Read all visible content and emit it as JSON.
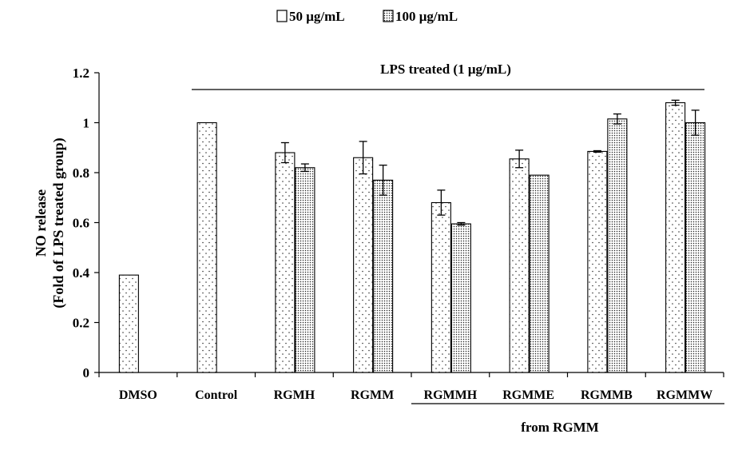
{
  "chart_data": {
    "type": "bar",
    "categories": [
      "DMSO",
      "Control",
      "RGMH",
      "RGMM",
      "RGMMH",
      "RGMME",
      "RGMMB",
      "RGMMW"
    ],
    "series": [
      {
        "name": "50 μg/mL",
        "pattern": "sparse-dots",
        "values": [
          0.39,
          1.0,
          0.88,
          0.86,
          0.68,
          0.855,
          0.885,
          1.08
        ],
        "errors": [
          0,
          0,
          0.04,
          0.065,
          0.05,
          0.035,
          0.003,
          0.01
        ]
      },
      {
        "name": "100 μg/mL",
        "pattern": "dense-dots",
        "values": [
          null,
          null,
          0.82,
          0.77,
          0.595,
          0.79,
          1.015,
          1.0
        ],
        "errors": [
          0,
          0,
          0.015,
          0.06,
          0.005,
          0,
          0.02,
          0.05
        ]
      }
    ],
    "ylabel_line1": "NO release",
    "ylabel_line2": "(Fold of LPS treated group)",
    "yticks": [
      "0",
      "0.2",
      "0.4",
      "0.6",
      "0.8",
      "1",
      "1.2"
    ],
    "ylim": [
      0,
      1.2
    ],
    "legend_position": "top-center",
    "grid": false,
    "annotations": {
      "lps_label": "LPS treated (1 μg/mL)",
      "from_label": "from RGMM"
    }
  }
}
